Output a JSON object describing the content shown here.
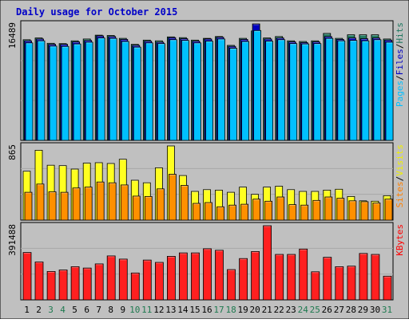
{
  "chart_data": {
    "type": "bar",
    "title": "Daily usage for October 2015",
    "categories": [
      "1",
      "2",
      "3",
      "4",
      "5",
      "6",
      "7",
      "8",
      "9",
      "10",
      "11",
      "12",
      "13",
      "14",
      "15",
      "16",
      "17",
      "18",
      "19",
      "20",
      "21",
      "22",
      "23",
      "24",
      "25",
      "26",
      "27",
      "28",
      "29",
      "30",
      "31"
    ],
    "weekend_days": [
      "3",
      "4",
      "10",
      "11",
      "17",
      "18",
      "24",
      "25",
      "31"
    ],
    "panels": [
      {
        "id": "top",
        "max_label": "16489",
        "ylim": [
          0,
          16489
        ],
        "legend": [
          {
            "text": "Pages",
            "color": "#00c0ff"
          },
          {
            "text": "/",
            "color": "#000000"
          },
          {
            "text": "Files",
            "color": "#0000c0"
          },
          {
            "text": "/",
            "color": "#000000"
          },
          {
            "text": "Hits",
            "color": "#207860"
          }
        ],
        "series": [
          {
            "name": "Hits",
            "color": "#207860",
            "values": [
              14250,
              14500,
              13750,
              13700,
              14100,
              14350,
              14900,
              14850,
              14450,
              13600,
              14200,
              14100,
              14650,
              14550,
              14200,
              14450,
              14700,
              13450,
              14450,
              15500,
              14500,
              14700,
              14100,
              14000,
              14100,
              15150,
              14450,
              14950,
              14950,
              14950,
              14350
            ]
          },
          {
            "name": "Files",
            "color": "#0000c0",
            "values": [
              14100,
              14350,
              13600,
              13600,
              13950,
              14150,
              14800,
              14700,
              14300,
              13450,
              14050,
              13900,
              14550,
              14400,
              14050,
              14350,
              14600,
              13300,
              14300,
              16489,
              14350,
              14500,
              13950,
              13850,
              13950,
              14700,
              14300,
              14500,
              14400,
              14500,
              14200
            ]
          },
          {
            "name": "Pages",
            "color": "#00c0ff",
            "values": [
              13800,
              14100,
              13350,
              13300,
              13650,
              13900,
              14500,
              14450,
              14000,
              13200,
              13800,
              13700,
              14250,
              14150,
              13800,
              14050,
              14350,
              13050,
              14000,
              15550,
              14050,
              14250,
              13700,
              13650,
              13700,
              14450,
              14100,
              14150,
              14100,
              14250,
              13900
            ]
          }
        ]
      },
      {
        "id": "mid",
        "max_label": "865",
        "ylim": [
          0,
          865
        ],
        "legend": [
          {
            "text": "Sites",
            "color": "#ff8000"
          },
          {
            "text": "/",
            "color": "#000000"
          },
          {
            "text": "Visits",
            "color": "#f0f000"
          }
        ],
        "series": [
          {
            "name": "Visits",
            "color": "#ffff20",
            "values": [
              570,
              815,
              640,
              635,
              595,
              665,
              670,
              660,
              710,
              465,
              435,
              610,
              865,
              520,
              335,
              355,
              350,
              325,
              385,
              300,
              385,
              395,
              355,
              335,
              335,
              350,
              360,
              275,
              225,
              220,
              285
            ]
          },
          {
            "name": "Sites",
            "color": "#ff9000",
            "values": [
              325,
              420,
              330,
              325,
              375,
              385,
              445,
              435,
              410,
              280,
              275,
              365,
              535,
              405,
              195,
              205,
              155,
              175,
              185,
              245,
              220,
              270,
              180,
              175,
              230,
              270,
              255,
              225,
              215,
              200,
              245
            ]
          }
        ]
      },
      {
        "id": "bot",
        "max_label": "391488",
        "ylim": [
          0,
          391488
        ],
        "legend": [
          {
            "text": "KBytes",
            "color": "#ff0000"
          }
        ],
        "series": [
          {
            "name": "KBytes",
            "color": "#ff2020",
            "values": [
              250000,
              200000,
              150000,
              158000,
              175000,
              168000,
              190000,
              232000,
              215000,
              142000,
              210000,
              198000,
              230000,
              248000,
              248000,
              270000,
              262000,
              160000,
              218000,
              255000,
              391488,
              240000,
              240000,
              268000,
              148000,
              225000,
              175000,
              178000,
              245000,
              240000,
              125000
            ]
          }
        ]
      }
    ]
  }
}
